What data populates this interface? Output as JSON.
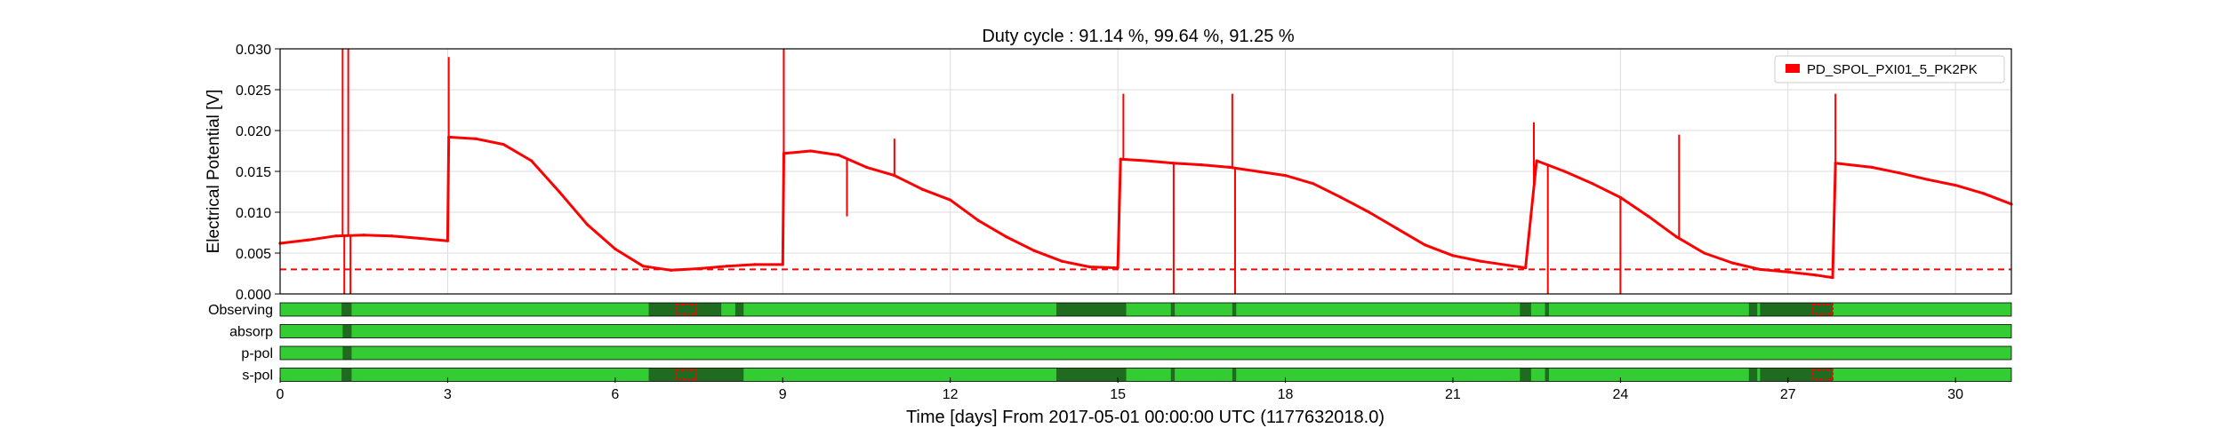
{
  "chart_data": {
    "type": "line",
    "title": "Duty cycle : 91.14 %, 99.64 %, 91.25 %",
    "xlabel": "Time [days] From 2017-05-01 00:00:00 UTC (1177632018.0)",
    "ylabel": "Electrical Potential [V]",
    "xlim": [
      0,
      31
    ],
    "ylim": [
      0,
      0.03
    ],
    "x_ticks": [
      0,
      3,
      6,
      9,
      12,
      15,
      18,
      21,
      24,
      27,
      30
    ],
    "y_ticks": [
      0.0,
      0.005,
      0.01,
      0.015,
      0.02,
      0.025,
      0.03
    ],
    "y_tick_labels": [
      "0.000",
      "0.005",
      "0.010",
      "0.015",
      "0.020",
      "0.025",
      "0.030"
    ],
    "grid": true,
    "legend_position": "top-right",
    "series": [
      {
        "name": "PD_SPOL_PXI01_5_PK2PK",
        "color": "#ff0000",
        "x": [
          0.0,
          0.5,
          1.0,
          1.5,
          2.0,
          2.5,
          3.0,
          3.02,
          3.5,
          4.0,
          4.5,
          5.0,
          5.5,
          6.0,
          6.5,
          7.0,
          7.5,
          8.0,
          8.5,
          9.0,
          9.02,
          9.5,
          10.0,
          10.5,
          11.0,
          11.5,
          12.0,
          12.5,
          13.0,
          13.5,
          14.0,
          14.5,
          15.0,
          15.05,
          15.5,
          16.0,
          16.5,
          17.0,
          17.5,
          18.0,
          18.5,
          19.0,
          19.5,
          20.0,
          20.5,
          21.0,
          21.5,
          22.0,
          22.3,
          22.5,
          23.0,
          23.5,
          24.0,
          24.5,
          25.0,
          25.5,
          26.0,
          26.5,
          27.0,
          27.5,
          27.8,
          27.85,
          28.5,
          29.0,
          29.5,
          30.0,
          30.5,
          31.0
        ],
        "y": [
          0.0062,
          0.0066,
          0.0071,
          0.0072,
          0.0071,
          0.0068,
          0.0065,
          0.0192,
          0.019,
          0.0183,
          0.0163,
          0.0125,
          0.0085,
          0.0055,
          0.0034,
          0.0029,
          0.0031,
          0.0034,
          0.0036,
          0.0036,
          0.0172,
          0.0175,
          0.017,
          0.0155,
          0.0145,
          0.0128,
          0.0115,
          0.009,
          0.007,
          0.0053,
          0.004,
          0.0033,
          0.0032,
          0.0165,
          0.0163,
          0.016,
          0.0158,
          0.0155,
          0.015,
          0.0145,
          0.0135,
          0.0118,
          0.01,
          0.008,
          0.006,
          0.0047,
          0.004,
          0.0035,
          0.0032,
          0.0163,
          0.015,
          0.0135,
          0.0118,
          0.0095,
          0.007,
          0.005,
          0.0038,
          0.003,
          0.0027,
          0.0023,
          0.002,
          0.016,
          0.0155,
          0.0148,
          0.014,
          0.0133,
          0.0123,
          0.011
        ]
      }
    ],
    "spikes": [
      {
        "x": 1.12,
        "y": 0.03
      },
      {
        "x": 1.15,
        "y": 0.0
      },
      {
        "x": 1.22,
        "y": 0.03
      },
      {
        "x": 1.26,
        "y": 0.0
      },
      {
        "x": 3.02,
        "y": 0.029
      },
      {
        "x": 9.02,
        "y": 0.03
      },
      {
        "x": 10.15,
        "y": 0.0095
      },
      {
        "x": 11.0,
        "y": 0.019
      },
      {
        "x": 15.1,
        "y": 0.0245
      },
      {
        "x": 16.0,
        "y": 0.0
      },
      {
        "x": 17.05,
        "y": 0.0245
      },
      {
        "x": 17.1,
        "y": 0.0
      },
      {
        "x": 22.45,
        "y": 0.021
      },
      {
        "x": 22.7,
        "y": 0.0
      },
      {
        "x": 24.0,
        "y": 0.0
      },
      {
        "x": 25.05,
        "y": 0.0195
      },
      {
        "x": 27.85,
        "y": 0.0245
      }
    ],
    "threshold": {
      "y": 0.003,
      "color": "#ff0000",
      "style": "dashed"
    },
    "segment_rows": {
      "labels": [
        "Observing",
        "absorp",
        "p-pol",
        "s-pol"
      ],
      "colors": {
        "active": "#33cc33",
        "known": "#1f6b1f",
        "flag": "#ff0000"
      },
      "rows": [
        {
          "label": "Observing",
          "dark": [
            [
              1.1,
              1.28
            ],
            [
              6.6,
              7.9
            ],
            [
              8.15,
              8.3
            ],
            [
              13.9,
              15.15
            ],
            [
              15.95,
              16.02
            ],
            [
              17.05,
              17.12
            ],
            [
              22.2,
              22.4
            ],
            [
              22.65,
              22.72
            ],
            [
              26.3,
              26.45
            ],
            [
              26.5,
              27.8
            ]
          ],
          "flags": [
            [
              7.1,
              7.45
            ],
            [
              27.45,
              27.8
            ]
          ]
        },
        {
          "label": "absorp",
          "dark": [
            [
              1.12,
              1.28
            ]
          ],
          "flags": []
        },
        {
          "label": "p-pol",
          "dark": [
            [
              1.12,
              1.28
            ]
          ],
          "flags": []
        },
        {
          "label": "s-pol",
          "dark": [
            [
              1.1,
              1.28
            ],
            [
              6.6,
              8.3
            ],
            [
              13.9,
              15.15
            ],
            [
              15.95,
              16.02
            ],
            [
              17.05,
              17.12
            ],
            [
              22.2,
              22.4
            ],
            [
              22.65,
              22.72
            ],
            [
              26.3,
              26.45
            ],
            [
              26.5,
              27.8
            ]
          ],
          "flags": [
            [
              7.1,
              7.45
            ],
            [
              27.45,
              27.8
            ]
          ]
        }
      ]
    }
  }
}
